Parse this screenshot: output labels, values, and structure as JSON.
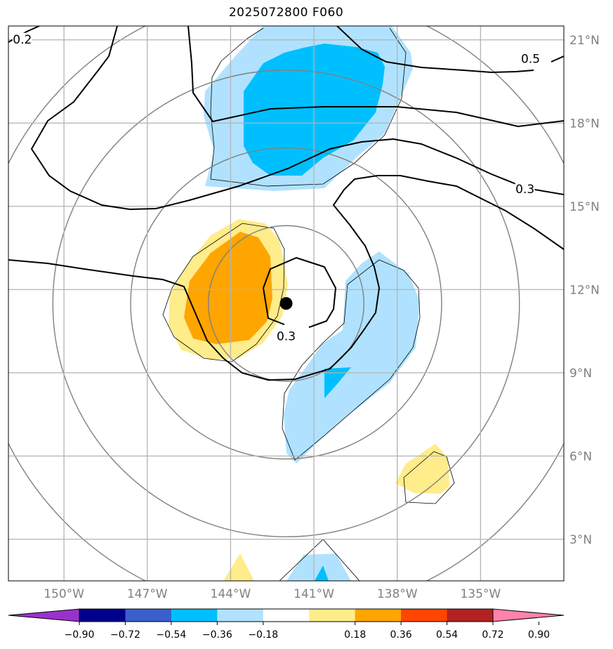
{
  "title": "2025072800 F060",
  "map": {
    "projection": "plate carree",
    "lon_range": [
      -152.0,
      -132.0
    ],
    "lat_range": [
      1.5,
      21.5
    ],
    "lon_ticks": [
      {
        "value": -150,
        "label": "150°W"
      },
      {
        "value": -147,
        "label": "147°W"
      },
      {
        "value": -144,
        "label": "144°W"
      },
      {
        "value": -141,
        "label": "141°W"
      },
      {
        "value": -138,
        "label": "138°W"
      },
      {
        "value": -135,
        "label": "135°W"
      }
    ],
    "lat_ticks": [
      {
        "value": 21,
        "label": "21°N"
      },
      {
        "value": 18,
        "label": "18°N"
      },
      {
        "value": 15,
        "label": "15°N"
      },
      {
        "value": 12,
        "label": "12°N"
      },
      {
        "value": 9,
        "label": "9°N"
      },
      {
        "value": 6,
        "label": "6°N"
      },
      {
        "value": 3,
        "label": "3°N"
      }
    ],
    "grid": true,
    "storm_center": {
      "lon": -142.0,
      "lat": 11.5
    },
    "range_rings_deg": [
      2.8,
      5.6,
      8.4,
      11.2
    ],
    "contour_labels": [
      {
        "text": "0.2",
        "lon": -151.5,
        "lat": 21.0
      },
      {
        "text": "0.5",
        "lon": -133.2,
        "lat": 20.3
      },
      {
        "text": "0.3",
        "lon": -133.4,
        "lat": 15.6
      },
      {
        "text": "0.3",
        "lon": -142.0,
        "lat": 10.3
      }
    ]
  },
  "colors": {
    "c_neg_090": "#9932cc",
    "c_neg_072": "#00008b",
    "c_neg_054": "#3a5fcd",
    "c_neg_036": "#00bfff",
    "c_neg_018": "#b0e2ff",
    "c_zero": "#ffffff",
    "c_pos_018": "#ffec8b",
    "c_pos_036": "#ffa500",
    "c_pos_054": "#ff4500",
    "c_pos_072": "#b22222",
    "c_pos_090": "#ff82ab"
  },
  "colorbar": {
    "ticks": [
      "−0.90",
      "−0.72",
      "−0.54",
      "−0.36",
      "−0.18",
      "0.18",
      "0.36",
      "0.54",
      "0.72",
      "0.90"
    ]
  }
}
